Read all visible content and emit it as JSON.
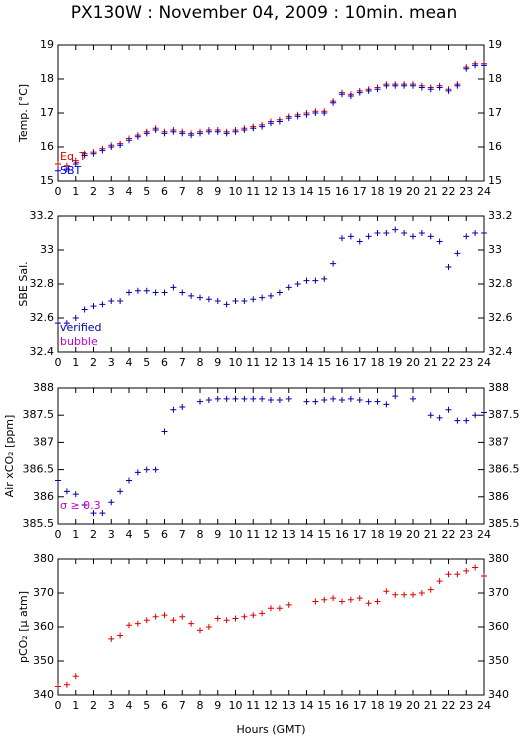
{
  "title": "PX130W : November 04, 2009 : 10min. mean",
  "xlabel": "Hours (GMT)",
  "chart_data": [
    {
      "type": "scatter",
      "ylabel": "Temp. [°C]",
      "xlim": [
        0,
        24
      ],
      "xticks": [
        0,
        1,
        2,
        3,
        4,
        5,
        6,
        7,
        8,
        9,
        10,
        11,
        12,
        13,
        14,
        15,
        16,
        17,
        18,
        19,
        20,
        21,
        22,
        23,
        24
      ],
      "ylim": [
        15,
        19
      ],
      "yticks": [
        15,
        16,
        17,
        18,
        19
      ],
      "x": [
        0,
        0.5,
        1,
        1.5,
        2,
        2.5,
        3,
        3.5,
        4,
        4.5,
        5,
        5.5,
        6,
        6.5,
        7,
        7.5,
        8,
        8.5,
        9,
        9.5,
        10,
        10.5,
        11,
        11.5,
        12,
        12.5,
        13,
        13.5,
        14,
        14.5,
        15,
        15.5,
        16,
        16.5,
        17,
        17.5,
        18,
        18.5,
        19,
        19.5,
        20,
        20.5,
        21,
        21.5,
        22,
        22.5,
        23,
        23.5,
        24
      ],
      "series": [
        {
          "name": "Eq_T",
          "color": "#dd0000",
          "values": [
            15.5,
            15.45,
            15.6,
            15.8,
            15.85,
            15.95,
            16.05,
            16.1,
            16.25,
            16.35,
            16.45,
            16.55,
            16.45,
            16.5,
            16.45,
            16.4,
            16.45,
            16.5,
            16.5,
            16.45,
            16.5,
            16.55,
            16.6,
            16.65,
            16.75,
            16.8,
            16.9,
            16.95,
            17,
            17.05,
            17.05,
            17.35,
            17.6,
            17.55,
            17.65,
            17.7,
            17.75,
            17.85,
            17.85,
            17.85,
            17.85,
            17.8,
            17.75,
            17.8,
            17.7,
            17.85,
            18.35,
            18.45,
            18.45
          ]
        },
        {
          "name": "SBT",
          "color": "#0000cc",
          "values": [
            15.3,
            15.35,
            15.5,
            15.75,
            15.8,
            15.9,
            16,
            16.05,
            16.2,
            16.3,
            16.4,
            16.5,
            16.4,
            16.45,
            16.4,
            16.35,
            16.4,
            16.45,
            16.45,
            16.4,
            16.45,
            16.5,
            16.55,
            16.6,
            16.7,
            16.75,
            16.85,
            16.9,
            16.95,
            17,
            17,
            17.3,
            17.55,
            17.5,
            17.6,
            17.65,
            17.7,
            17.8,
            17.8,
            17.8,
            17.8,
            17.75,
            17.7,
            17.75,
            17.65,
            17.8,
            18.3,
            18.4,
            18.4
          ]
        }
      ]
    },
    {
      "type": "scatter",
      "ylabel": "SBE Sal.",
      "xlim": [
        0,
        24
      ],
      "xticks": [
        0,
        1,
        2,
        3,
        4,
        5,
        6,
        7,
        8,
        9,
        10,
        11,
        12,
        13,
        14,
        15,
        16,
        17,
        18,
        19,
        20,
        21,
        22,
        23,
        24
      ],
      "ylim": [
        32.4,
        33.2
      ],
      "yticks": [
        32.4,
        32.6,
        32.8,
        33,
        33.2
      ],
      "x": [
        0,
        0.5,
        1,
        1.5,
        2,
        2.5,
        3,
        3.5,
        4,
        4.5,
        5,
        5.5,
        6,
        6.5,
        7,
        7.5,
        8,
        8.5,
        9,
        9.5,
        10,
        10.5,
        11,
        11.5,
        12,
        12.5,
        13,
        13.5,
        14,
        14.5,
        15,
        15.5,
        16,
        16.5,
        17,
        17.5,
        18,
        18.5,
        19,
        19.5,
        20,
        20.5,
        21,
        21.5,
        22,
        22.5,
        23,
        23.5,
        24
      ],
      "series": [
        {
          "name": "verified",
          "color": "#0000aa",
          "values": [
            32.57,
            32.57,
            32.6,
            32.65,
            32.67,
            32.68,
            32.7,
            32.7,
            32.75,
            32.76,
            32.76,
            32.75,
            32.75,
            32.78,
            32.75,
            32.73,
            32.72,
            32.71,
            32.7,
            32.68,
            32.7,
            32.7,
            32.71,
            32.72,
            32.73,
            32.75,
            32.78,
            32.8,
            32.82,
            32.82,
            32.83,
            32.92,
            33.07,
            33.08,
            33.05,
            33.08,
            33.1,
            33.1,
            33.12,
            33.1,
            33.08,
            33.1,
            33.08,
            33.05,
            32.9,
            32.98,
            33.08,
            33.1,
            33.1
          ]
        },
        {
          "name": "bubble",
          "color": "#cc00cc",
          "values": [
            null,
            null,
            null,
            null,
            null,
            null,
            null,
            null,
            null,
            null,
            null,
            null,
            null,
            null,
            null,
            null,
            null,
            null,
            null,
            null,
            null,
            null,
            null,
            null,
            null,
            null,
            null,
            null,
            null,
            null,
            null,
            null,
            null,
            null,
            null,
            null,
            null,
            null,
            null,
            null,
            null,
            null,
            null,
            null,
            null,
            null,
            null,
            null,
            null
          ]
        }
      ]
    },
    {
      "type": "scatter",
      "ylabel": "Air xCO₂ [ppm]",
      "annotation": "σ ≥ 0.3",
      "xlim": [
        0,
        24
      ],
      "xticks": [
        0,
        1,
        2,
        3,
        4,
        5,
        6,
        7,
        8,
        9,
        10,
        11,
        12,
        13,
        14,
        15,
        16,
        17,
        18,
        19,
        20,
        21,
        22,
        23,
        24
      ],
      "ylim": [
        385.5,
        388
      ],
      "yticks": [
        385.5,
        386,
        386.5,
        387,
        387.5,
        388
      ],
      "x": [
        0,
        0.5,
        1,
        1.5,
        2,
        2.5,
        3,
        3.5,
        4,
        4.5,
        5,
        5.5,
        6,
        6.5,
        7,
        7.5,
        8,
        8.5,
        9,
        9.5,
        10,
        10.5,
        11,
        11.5,
        12,
        12.5,
        13,
        13.5,
        14,
        14.5,
        15,
        15.5,
        16,
        16.5,
        17,
        17.5,
        18,
        18.5,
        19,
        19.5,
        20,
        20.5,
        21,
        21.5,
        22,
        22.5,
        23,
        23.5,
        24
      ],
      "series": [
        {
          "name": "xCO2",
          "color": "#0000aa",
          "values": [
            386.3,
            386.1,
            386.05,
            385.85,
            385.7,
            385.7,
            385.9,
            386.1,
            386.3,
            386.45,
            386.5,
            386.5,
            387.2,
            387.6,
            387.65,
            null,
            387.75,
            387.78,
            387.8,
            387.8,
            387.8,
            387.8,
            387.8,
            387.8,
            387.78,
            387.78,
            387.8,
            null,
            387.75,
            387.75,
            387.78,
            387.8,
            387.78,
            387.8,
            387.78,
            387.75,
            387.75,
            387.7,
            387.85,
            null,
            387.8,
            null,
            387.5,
            387.45,
            387.6,
            387.4,
            387.4,
            387.5,
            387.55
          ]
        }
      ]
    },
    {
      "type": "scatter",
      "ylabel": "pCO₂ [μ atm]",
      "xlim": [
        0,
        24
      ],
      "xticks": [
        0,
        1,
        2,
        3,
        4,
        5,
        6,
        7,
        8,
        9,
        10,
        11,
        12,
        13,
        14,
        15,
        16,
        17,
        18,
        19,
        20,
        21,
        22,
        23,
        24
      ],
      "ylim": [
        340,
        380
      ],
      "yticks": [
        340,
        350,
        360,
        370,
        380
      ],
      "x": [
        0,
        0.5,
        1,
        1.5,
        2,
        2.5,
        3,
        3.5,
        4,
        4.5,
        5,
        5.5,
        6,
        6.5,
        7,
        7.5,
        8,
        8.5,
        9,
        9.5,
        10,
        10.5,
        11,
        11.5,
        12,
        12.5,
        13,
        13.5,
        14,
        14.5,
        15,
        15.5,
        16,
        16.5,
        17,
        17.5,
        18,
        18.5,
        19,
        19.5,
        20,
        20.5,
        21,
        21.5,
        22,
        22.5,
        23,
        23.5,
        24
      ],
      "series": [
        {
          "name": "pCO2",
          "color": "#dd0000",
          "values": [
            342.5,
            343,
            345.5,
            null,
            null,
            null,
            356.5,
            357.5,
            360.5,
            361,
            362,
            363,
            363.5,
            362,
            363,
            361,
            359,
            360,
            362.5,
            362,
            362.5,
            363,
            363.5,
            364,
            365.5,
            365.5,
            366.5,
            null,
            null,
            367.5,
            368,
            368.5,
            367.5,
            368,
            368.5,
            367,
            367.5,
            370.5,
            369.5,
            369.5,
            369.5,
            370,
            371,
            373.5,
            375.5,
            375.5,
            376.5,
            377.5,
            375
          ]
        }
      ]
    }
  ]
}
